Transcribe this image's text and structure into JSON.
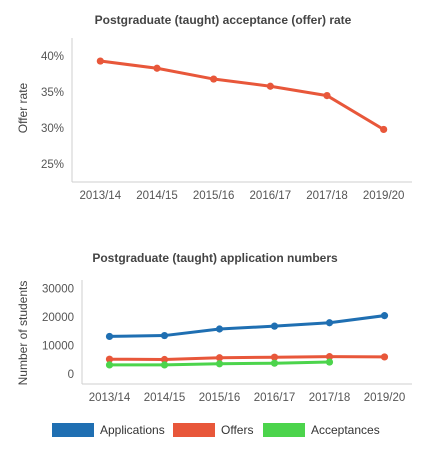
{
  "chart_data": [
    {
      "type": "line",
      "title": "Postgraduate (taught) acceptance (offer) rate",
      "ylabel": "Offer rate",
      "xlabel": "",
      "categories": [
        "2013/14",
        "2014/15",
        "2015/16",
        "2016/17",
        "2017/18",
        "2019/20"
      ],
      "y_ticks": [
        "40%",
        "35%",
        "30%",
        "25%"
      ],
      "y_tick_values": [
        40,
        35,
        30,
        25
      ],
      "ylim": [
        22.5,
        42.5
      ],
      "series": [
        {
          "values": [
            39.3,
            38.3,
            36.8,
            35.8,
            34.5,
            29.8
          ],
          "color": "#e8573a"
        }
      ]
    },
    {
      "type": "line",
      "title": "Postgraduate (taught) application numbers",
      "ylabel": "Number of students",
      "xlabel": "",
      "categories": [
        "2013/14",
        "2014/15",
        "2015/16",
        "2016/17",
        "2017/18",
        "2019/20"
      ],
      "y_ticks": [
        "30000",
        "20000",
        "10000",
        "0"
      ],
      "y_tick_values": [
        30000,
        20000,
        10000,
        0
      ],
      "ylim": [
        -3500,
        33000
      ],
      "legend_position": "bottom",
      "series": [
        {
          "name": "Applications",
          "values": [
            13200,
            13500,
            15800,
            16800,
            18000,
            20500
          ],
          "color": "#1f6fb2"
        },
        {
          "name": "Offers",
          "values": [
            5200,
            5100,
            5700,
            5900,
            6100,
            6000
          ],
          "color": "#e8573a"
        },
        {
          "name": "Acceptances",
          "values": [
            3200,
            3200,
            3600,
            3800,
            4200,
            null
          ],
          "color": "#4cd44c"
        }
      ]
    }
  ]
}
